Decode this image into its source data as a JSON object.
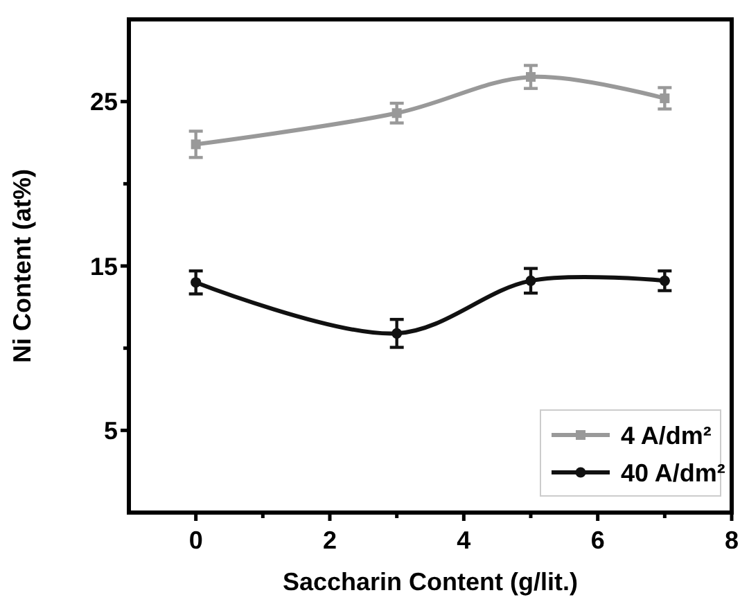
{
  "chart_data": {
    "type": "line",
    "xlabel": "Saccharin Content (g/lit.)",
    "ylabel": "Ni Content (at%)",
    "xlim": [
      -1,
      8
    ],
    "xticks": [
      0,
      {
        "value": 1,
        "label": null
      },
      2,
      {
        "value": 3,
        "label": null
      },
      4,
      {
        "value": 5,
        "label": null
      },
      6,
      {
        "value": 7,
        "label": null
      },
      8
    ],
    "ylim": [
      0,
      30
    ],
    "yticks": [
      5,
      {
        "value": 10,
        "label": null
      },
      15,
      {
        "value": 20,
        "label": null
      },
      25
    ],
    "legend": "bottom right",
    "grid": false,
    "series": [
      {
        "name": "4 A/dm²",
        "color": "#999999",
        "marker": "square",
        "x": [
          0,
          3,
          5,
          7
        ],
        "values": [
          22.4,
          24.3,
          26.5,
          25.2
        ],
        "errors": [
          0.8,
          0.6,
          0.7,
          0.65
        ]
      },
      {
        "name": "40 A/dm²",
        "color": "#111111",
        "marker": "circle",
        "x": [
          0,
          3,
          5,
          7
        ],
        "values": [
          14.0,
          10.9,
          14.1,
          14.1
        ],
        "errors": [
          0.7,
          0.85,
          0.75,
          0.6
        ]
      }
    ]
  }
}
